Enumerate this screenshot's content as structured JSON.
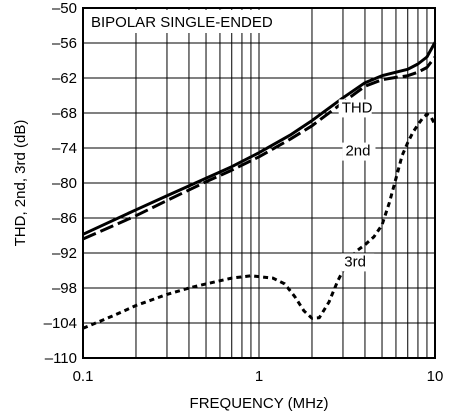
{
  "chart_data": {
    "type": "line",
    "title": "BIPOLAR SINGLE-ENDED",
    "xlabel": "FREQUENCY (MHz)",
    "ylabel": "THD, 2nd, 3rd (dB)",
    "xscale": "log",
    "xlim": [
      0.1,
      10
    ],
    "ylim": [
      -110,
      -50
    ],
    "x_ticks": [
      0.1,
      1,
      10
    ],
    "x_tick_labels": [
      "0.1",
      "1",
      "10"
    ],
    "y_ticks": [
      -50,
      -56,
      -62,
      -68,
      -74,
      -80,
      -86,
      -92,
      -98,
      -104,
      -110
    ],
    "y_tick_labels": [
      "–50",
      "–56",
      "–62",
      "–68",
      "–74",
      "–80",
      "–86",
      "–92",
      "–98",
      "–104",
      "–110"
    ],
    "grid": true,
    "series": [
      {
        "name": "THD",
        "style": "solid",
        "x": [
          0.1,
          0.2,
          0.3,
          0.5,
          0.7,
          1,
          1.5,
          2,
          3,
          4,
          5,
          6,
          7,
          8,
          9,
          10
        ],
        "y": [
          -88.8,
          -84.6,
          -82.2,
          -79.2,
          -77.2,
          -74.8,
          -71.8,
          -69.3,
          -65.4,
          -62.8,
          -61.6,
          -61.0,
          -60.5,
          -59.6,
          -58.4,
          -55.9
        ]
      },
      {
        "name": "2nd",
        "style": "dashed",
        "x": [
          0.1,
          0.2,
          0.3,
          0.5,
          0.7,
          1,
          1.5,
          2,
          3,
          4,
          5,
          6,
          7,
          8,
          9,
          10
        ],
        "y": [
          -89.6,
          -85.6,
          -83.0,
          -79.8,
          -77.8,
          -75.5,
          -72.5,
          -70.2,
          -66.2,
          -63.4,
          -62.3,
          -61.9,
          -61.6,
          -61.0,
          -60.2,
          -58.4
        ]
      },
      {
        "name": "3rd",
        "style": "dotted",
        "x": [
          0.1,
          0.15,
          0.2,
          0.3,
          0.4,
          0.5,
          0.7,
          0.9,
          1.2,
          1.4,
          1.6,
          1.8,
          2.0,
          2.2,
          2.5,
          2.8,
          3.2,
          3.6,
          4.0,
          4.5,
          5.0,
          5.5,
          6.0,
          6.5,
          7.0,
          7.5,
          8.0,
          8.5,
          9.0,
          9.5,
          10
        ],
        "y": [
          -104.9,
          -102.7,
          -101.0,
          -99.1,
          -98.0,
          -97.3,
          -96.3,
          -95.9,
          -96.3,
          -97.3,
          -99.5,
          -101.9,
          -103.2,
          -103.1,
          -100.4,
          -96.8,
          -93.4,
          -91.6,
          -90.6,
          -89.2,
          -87.2,
          -83.4,
          -79.2,
          -75.3,
          -73.1,
          -71.3,
          -70.0,
          -68.9,
          -68.2,
          -68.7,
          -70.0
        ]
      }
    ],
    "annotations": [
      {
        "text": "THD",
        "x": 2.95,
        "y": -67.9
      },
      {
        "text": "2nd",
        "x": 3.1,
        "y": -75.3
      },
      {
        "text": "3rd",
        "x": 3.05,
        "y": -94.3
      }
    ]
  }
}
